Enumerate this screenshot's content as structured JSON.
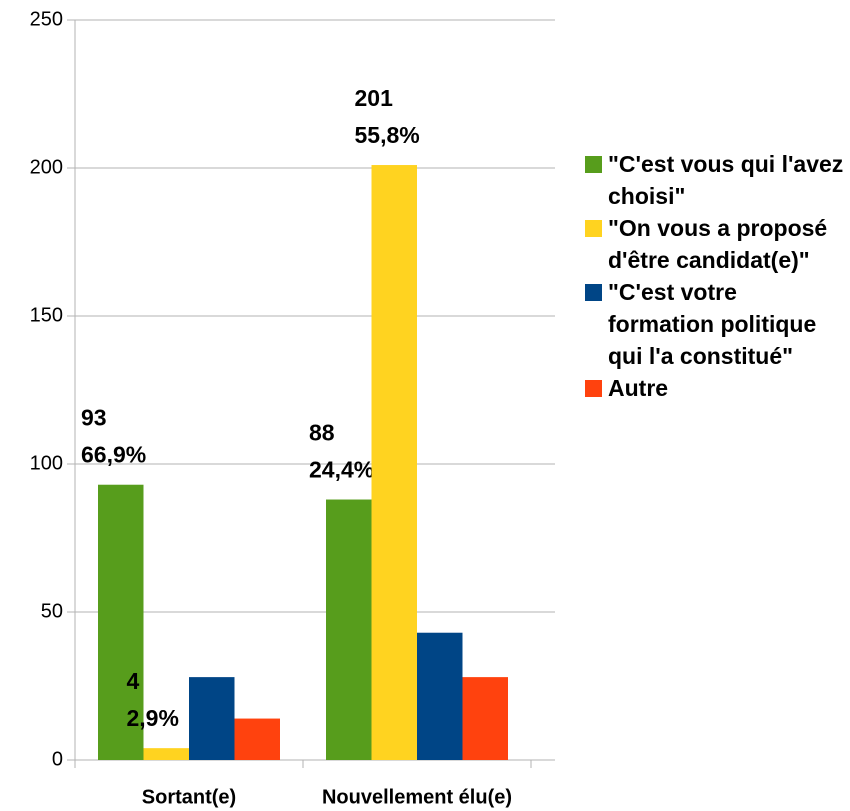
{
  "chart_data": {
    "type": "bar",
    "categories": [
      "Sortant(e)",
      "Nouvellement élu(e)"
    ],
    "series": [
      {
        "name": "\"C'est vous qui l'avez choisi\"",
        "color": "#579d1c",
        "values": [
          93,
          88
        ],
        "value_labels": [
          "93\n66,9%",
          "88\n24,4%"
        ]
      },
      {
        "name": "\"On vous a proposé d'être candidat(e)\"",
        "color": "#ffd320",
        "values": [
          4,
          201
        ],
        "value_labels": [
          "4\n2,9%",
          "201\n55,8%"
        ]
      },
      {
        "name": "\"C'est votre formation politique qui l'a constitué\"",
        "color": "#004586",
        "values": [
          28,
          43
        ]
      },
      {
        "name": "Autre",
        "color": "#ff420e",
        "values": [
          14,
          28
        ]
      }
    ],
    "ylim": [
      0,
      250
    ],
    "yticks": [
      0,
      50,
      100,
      150,
      200,
      250
    ],
    "grid": true,
    "legend": "right"
  }
}
